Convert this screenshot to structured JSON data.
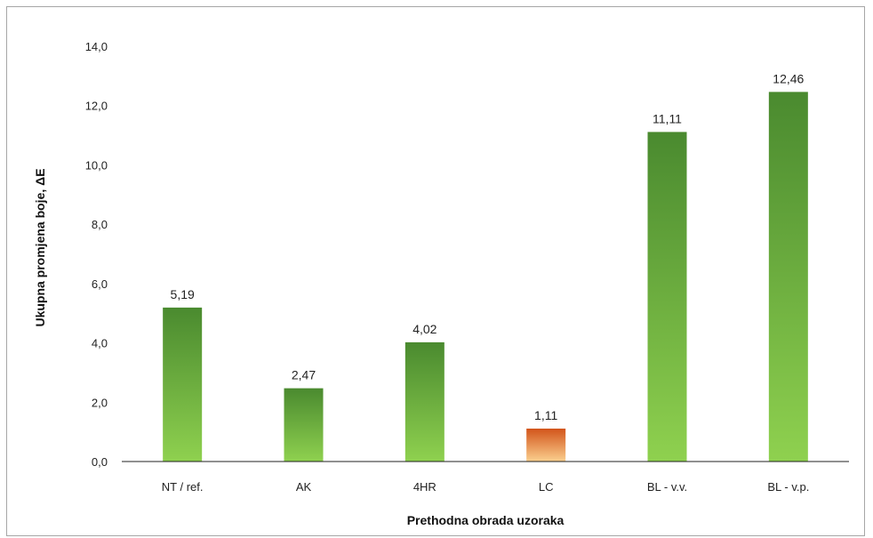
{
  "chart_data": {
    "type": "bar",
    "title": "",
    "xlabel": "Prethodna obrada uzoraka",
    "ylabel": "Ukupna promjena boje, ΔE",
    "categories": [
      "NT / ref.",
      "AK",
      "4HR",
      "LC",
      "BL - v.v.",
      "BL - v.p."
    ],
    "values": [
      5.19,
      2.47,
      4.02,
      1.11,
      11.11,
      12.46
    ],
    "value_labels": [
      "5,19",
      "2,47",
      "4,02",
      "1,11",
      "11,11",
      "12,46"
    ],
    "bar_colors": [
      "green",
      "green",
      "green",
      "orange",
      "green",
      "green"
    ],
    "ylim": [
      0,
      14
    ],
    "yticks": [
      0,
      2,
      4,
      6,
      8,
      10,
      12,
      14
    ],
    "ytick_labels": [
      "0,0",
      "2,0",
      "4,0",
      "6,0",
      "8,0",
      "10,0",
      "12,0",
      "14,0"
    ],
    "grid": false,
    "legend": "none"
  },
  "colors": {
    "green_top": "#4a8a2f",
    "green_bottom": "#8fd14f",
    "orange_top": "#d2541a",
    "orange_bottom": "#fbd08f",
    "axis": "#222222"
  }
}
